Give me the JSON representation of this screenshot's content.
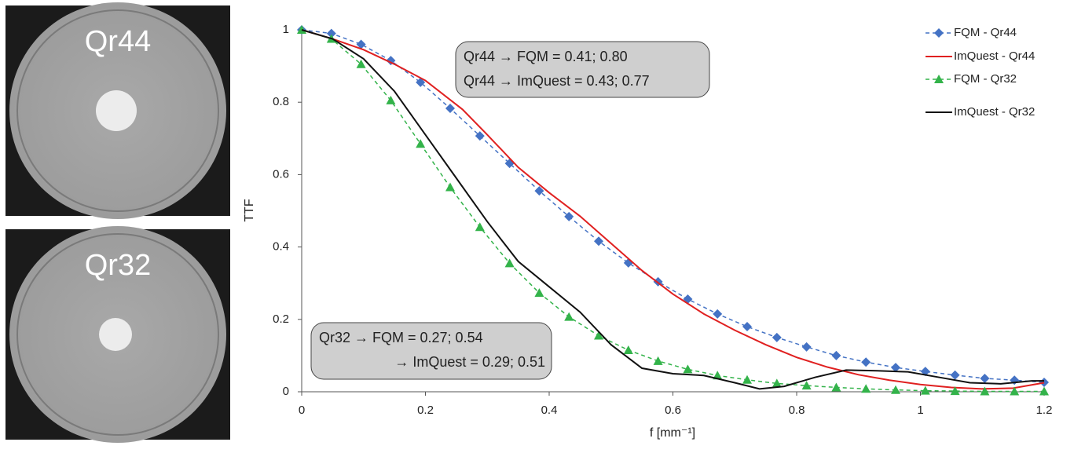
{
  "panels": [
    {
      "label": "Qr44"
    },
    {
      "label": "Qr32"
    }
  ],
  "chart_data": {
    "type": "line",
    "y_label": "TTF",
    "x_label": "f [mm⁻¹]",
    "xlim": [
      0,
      1.2
    ],
    "ylim": [
      0,
      1
    ],
    "xticks": [
      0,
      0.2,
      0.4,
      0.6,
      0.8,
      1,
      1.2
    ],
    "yticks": [
      0,
      0.2,
      0.4,
      0.6,
      0.8,
      1
    ],
    "legend": "upper right",
    "series": [
      {
        "name": "FQM - Qr44",
        "color": "#4472c4",
        "marker": "diamond",
        "dashed": true,
        "x": [
          0,
          0.048,
          0.096,
          0.144,
          0.192,
          0.24,
          0.288,
          0.336,
          0.384,
          0.432,
          0.48,
          0.528,
          0.576,
          0.624,
          0.672,
          0.72,
          0.768,
          0.816,
          0.864,
          0.912,
          0.96,
          1.008,
          1.056,
          1.104,
          1.152,
          1.2
        ],
        "values": [
          1.0,
          0.99,
          0.96,
          0.915,
          0.855,
          0.783,
          0.707,
          0.631,
          0.555,
          0.484,
          0.416,
          0.356,
          0.304,
          0.256,
          0.215,
          0.18,
          0.15,
          0.124,
          0.1,
          0.082,
          0.067,
          0.056,
          0.046,
          0.037,
          0.032,
          0.026
        ]
      },
      {
        "name": "ImQuest - Qr44",
        "color": "#e02020",
        "marker": "none",
        "dashed": false,
        "x": [
          0,
          0.05,
          0.1,
          0.15,
          0.2,
          0.26,
          0.3,
          0.35,
          0.4,
          0.45,
          0.5,
          0.55,
          0.6,
          0.65,
          0.7,
          0.75,
          0.8,
          0.85,
          0.9,
          0.95,
          1.0,
          1.05,
          1.1,
          1.15,
          1.2
        ],
        "values": [
          1.0,
          0.975,
          0.945,
          0.905,
          0.86,
          0.78,
          0.71,
          0.62,
          0.55,
          0.485,
          0.41,
          0.335,
          0.27,
          0.215,
          0.17,
          0.13,
          0.095,
          0.068,
          0.047,
          0.032,
          0.02,
          0.012,
          0.008,
          0.01,
          0.025
        ]
      },
      {
        "name": "FQM - Qr32",
        "color": "#33b34a",
        "marker": "triangle",
        "dashed": true,
        "x": [
          0,
          0.048,
          0.096,
          0.144,
          0.192,
          0.24,
          0.288,
          0.336,
          0.384,
          0.432,
          0.48,
          0.528,
          0.576,
          0.624,
          0.672,
          0.72,
          0.768,
          0.816,
          0.864,
          0.912,
          0.96,
          1.008,
          1.056,
          1.104,
          1.152,
          1.2
        ],
        "values": [
          1.0,
          0.975,
          0.905,
          0.805,
          0.685,
          0.565,
          0.455,
          0.355,
          0.273,
          0.207,
          0.155,
          0.115,
          0.085,
          0.062,
          0.045,
          0.033,
          0.023,
          0.017,
          0.012,
          0.008,
          0.005,
          0.003,
          0.002,
          0.001,
          0.001,
          0.001
        ]
      },
      {
        "name": "ImQuest - Qr32",
        "color": "#111111",
        "marker": "none",
        "dashed": false,
        "x": [
          0,
          0.05,
          0.1,
          0.15,
          0.2,
          0.25,
          0.3,
          0.35,
          0.4,
          0.45,
          0.5,
          0.55,
          0.6,
          0.65,
          0.7,
          0.74,
          0.78,
          0.83,
          0.88,
          0.93,
          0.98,
          1.03,
          1.08,
          1.13,
          1.18,
          1.2
        ],
        "values": [
          1.0,
          0.975,
          0.92,
          0.83,
          0.71,
          0.59,
          0.47,
          0.36,
          0.29,
          0.22,
          0.13,
          0.065,
          0.05,
          0.045,
          0.025,
          0.008,
          0.015,
          0.04,
          0.06,
          0.058,
          0.055,
          0.04,
          0.025,
          0.022,
          0.03,
          0.03
        ]
      }
    ],
    "annotations": [
      {
        "lines": [
          "Qr44 → FQM = 0.41; 0.80",
          "Qr44 → ImQuest = 0.43; 0.77"
        ]
      },
      {
        "lines": [
          "Qr32 → FQM = 0.27; 0.54",
          "→ ImQuest = 0.29; 0.51"
        ]
      }
    ]
  }
}
